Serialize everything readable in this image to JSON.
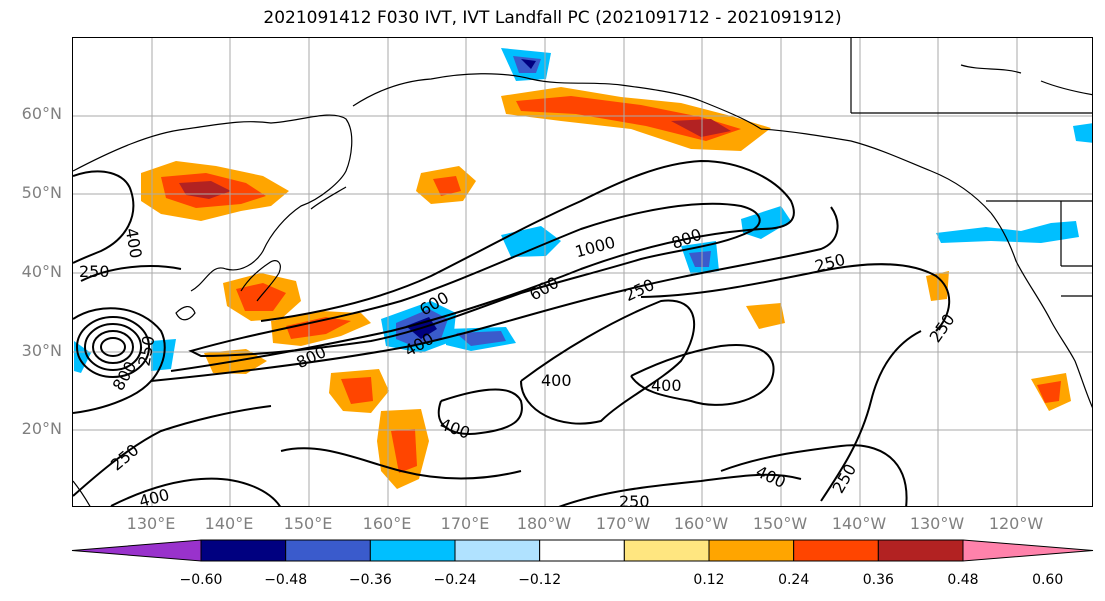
{
  "title": "2021091412 F030 IVT, IVT Landfall PC (2021091712 - 2021091912)",
  "latitude_labels": [
    "60°N",
    "50°N",
    "40°N",
    "30°N",
    "20°N"
  ],
  "longitude_labels": [
    "130°E",
    "140°E",
    "150°E",
    "160°E",
    "170°E",
    "180°W",
    "170°W",
    "160°W",
    "150°W",
    "140°W",
    "130°W",
    "120°W"
  ],
  "contour_labels": [
    "400",
    "250",
    "1000",
    "800",
    "250",
    "600",
    "600",
    "250",
    "800",
    "800",
    "400",
    "400",
    "400",
    "250",
    "400",
    "250",
    "400",
    "250",
    "250",
    "400",
    "250"
  ],
  "colorbar": {
    "colors": [
      "#9932cc",
      "#000080",
      "#3a5bcc",
      "#00bfff",
      "#b0e2ff",
      "#ffffff",
      "#ffe680",
      "#ffa500",
      "#ff4500",
      "#b22222",
      "#ff82ab"
    ],
    "ticks": [
      "−0.60",
      "−0.48",
      "−0.36",
      "−0.24",
      "−0.12",
      "0.12",
      "0.24",
      "0.36",
      "0.48",
      "0.60"
    ]
  }
}
